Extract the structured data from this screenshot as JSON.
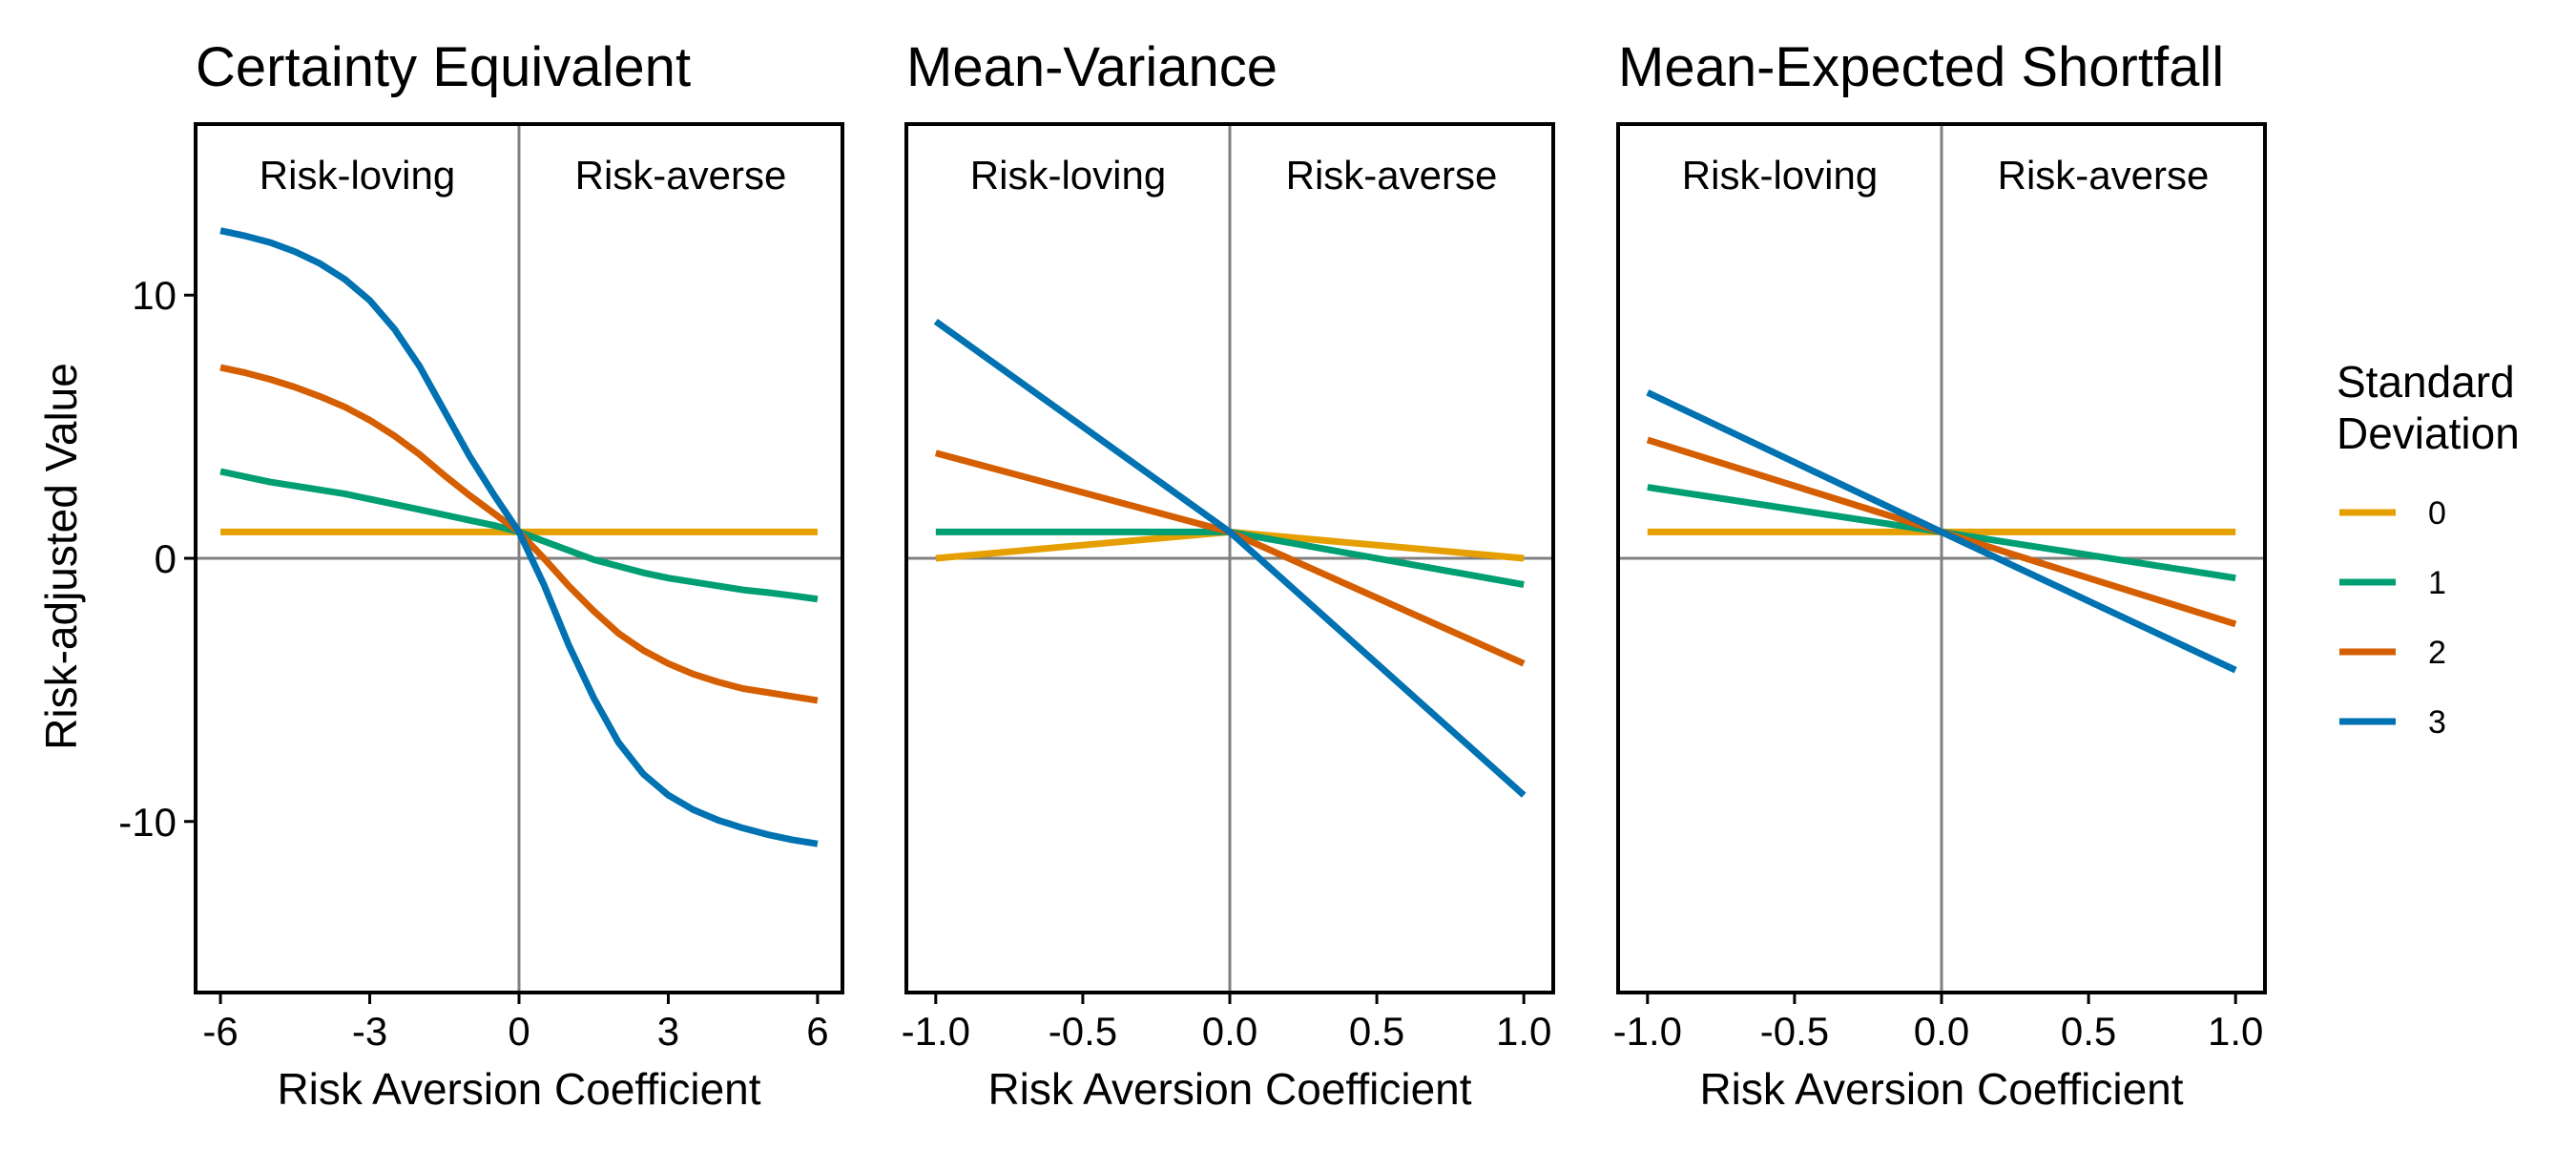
{
  "legend": {
    "title_line1": "Standard",
    "title_line2": "Deviation",
    "entries": [
      {
        "label": "0",
        "color": "#E69F00"
      },
      {
        "label": "1",
        "color": "#009E73"
      },
      {
        "label": "2",
        "color": "#D55E00"
      },
      {
        "label": "3",
        "color": "#0072B2"
      }
    ]
  },
  "y_axis_title": "Risk-adjusted Value",
  "chart_data": [
    {
      "type": "line",
      "title": "Certainty Equivalent",
      "xlabel": "Risk Aversion Coefficient",
      "ylabel": "Risk-adjusted Value",
      "xlim": [
        -6.5,
        6.5
      ],
      "ylim": [
        -16.5,
        16.5
      ],
      "xticks": [
        -6,
        -3,
        0,
        3,
        6
      ],
      "xtick_labels": [
        "-6",
        "-3",
        "0",
        "3",
        "6"
      ],
      "yticks": [
        -10,
        0,
        10
      ],
      "ytick_labels": [
        "-10",
        "0",
        "10"
      ],
      "region_labels": [
        "Risk-loving",
        "Risk-averse"
      ],
      "x": [
        -6,
        -5.5,
        -5,
        -4.5,
        -4,
        -3.5,
        -3,
        -2.5,
        -2,
        -1.5,
        -1,
        -0.5,
        0,
        0.5,
        1,
        1.5,
        2,
        2.5,
        3,
        3.5,
        4,
        4.5,
        5,
        5.5,
        6
      ],
      "series": [
        {
          "name": "0",
          "values": [
            1,
            1,
            1,
            1,
            1,
            1,
            1,
            1,
            1,
            1,
            1,
            1,
            1,
            1,
            1,
            1,
            1,
            1,
            1,
            1,
            1,
            1,
            1,
            1,
            1
          ]
        },
        {
          "name": "1",
          "values": [
            3.3,
            3.1,
            2.9,
            2.75,
            2.6,
            2.45,
            2.25,
            2.05,
            1.85,
            1.65,
            1.45,
            1.25,
            1.0,
            0.65,
            0.3,
            -0.05,
            -0.3,
            -0.55,
            -0.75,
            -0.9,
            -1.05,
            -1.2,
            -1.3,
            -1.42,
            -1.55
          ]
        },
        {
          "name": "2",
          "values": [
            7.25,
            7.05,
            6.8,
            6.5,
            6.15,
            5.75,
            5.25,
            4.65,
            3.95,
            3.15,
            2.4,
            1.7,
            1.0,
            0.0,
            -1.05,
            -2.0,
            -2.85,
            -3.5,
            -4.0,
            -4.4,
            -4.7,
            -4.95,
            -5.1,
            -5.25,
            -5.4
          ]
        },
        {
          "name": "3",
          "values": [
            12.45,
            12.25,
            12.0,
            11.65,
            11.2,
            10.6,
            9.8,
            8.7,
            7.3,
            5.6,
            3.9,
            2.4,
            1.0,
            -1.0,
            -3.3,
            -5.3,
            -7.0,
            -8.2,
            -9.0,
            -9.55,
            -9.95,
            -10.25,
            -10.5,
            -10.7,
            -10.85
          ]
        }
      ]
    },
    {
      "type": "line",
      "title": "Mean-Variance",
      "xlabel": "Risk Aversion Coefficient",
      "xlim": [
        -1.1,
        1.1
      ],
      "ylim": [
        -16.5,
        16.5
      ],
      "xticks": [
        -1.0,
        -0.5,
        0.0,
        0.5,
        1.0
      ],
      "xtick_labels": [
        "-1.0",
        "-0.5",
        "0.0",
        "0.5",
        "1.0"
      ],
      "region_labels": [
        "Risk-loving",
        "Risk-averse"
      ],
      "x": [
        -1.0,
        0.0,
        1.0
      ],
      "series": [
        {
          "name": "0",
          "values": [
            0,
            1,
            0
          ]
        },
        {
          "name": "1",
          "values": [
            1,
            1,
            -1
          ]
        },
        {
          "name": "2",
          "values": [
            4,
            1,
            -4
          ]
        },
        {
          "name": "3",
          "values": [
            9,
            1,
            -9
          ]
        }
      ]
    },
    {
      "type": "line",
      "title": "Mean-Expected Shortfall",
      "xlabel": "Risk Aversion Coefficient",
      "xlim": [
        -1.1,
        1.1
      ],
      "ylim": [
        -16.5,
        16.5
      ],
      "xticks": [
        -1.0,
        -0.5,
        0.0,
        0.5,
        1.0
      ],
      "xtick_labels": [
        "-1.0",
        "-0.5",
        "0.0",
        "0.5",
        "1.0"
      ],
      "region_labels": [
        "Risk-loving",
        "Risk-averse"
      ],
      "x": [
        -1.0,
        0.0,
        1.0
      ],
      "series": [
        {
          "name": "0",
          "values": [
            1,
            1,
            1
          ]
        },
        {
          "name": "1",
          "values": [
            2.7,
            1,
            -0.75
          ]
        },
        {
          "name": "2",
          "values": [
            4.5,
            1,
            -2.5
          ]
        },
        {
          "name": "3",
          "values": [
            6.3,
            1,
            -4.25
          ]
        }
      ]
    }
  ]
}
